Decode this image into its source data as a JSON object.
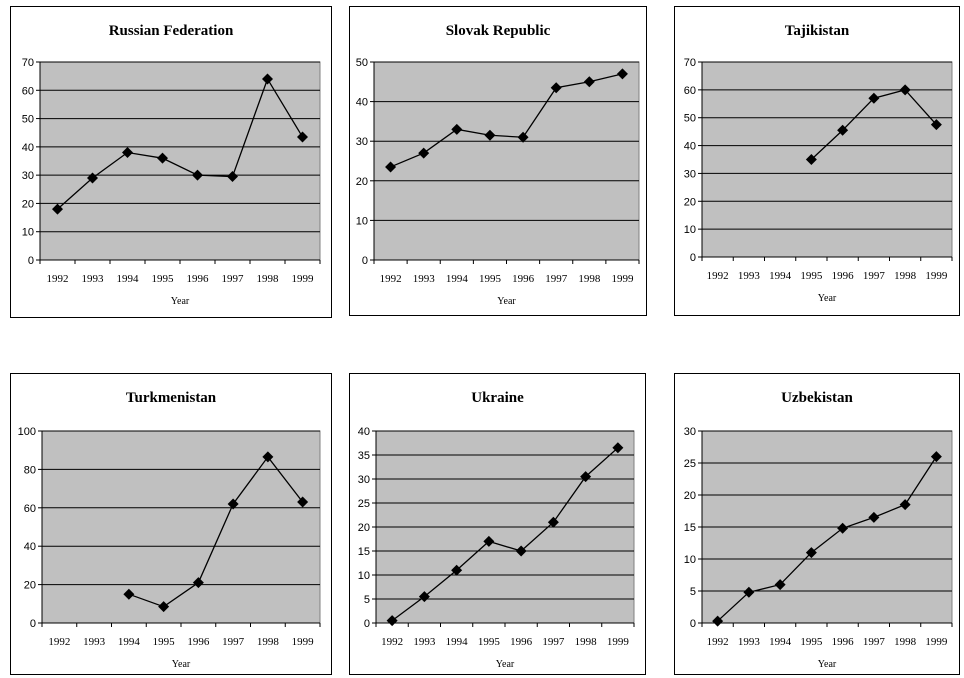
{
  "chart_data": [
    {
      "type": "line",
      "title": "Russian Federation",
      "xlabel": "Year",
      "ylabel": "",
      "x": [
        "1992",
        "1993",
        "1994",
        "1995",
        "1996",
        "1997",
        "1998",
        "1999"
      ],
      "ylim": [
        0,
        70
      ],
      "yticks": [
        0,
        10,
        20,
        30,
        40,
        50,
        60,
        70
      ],
      "values": [
        18,
        29,
        38,
        36,
        30,
        29.5,
        64,
        43.5
      ],
      "grid": true
    },
    {
      "type": "line",
      "title": "Slovak Republic",
      "xlabel": "Year",
      "ylabel": "",
      "x": [
        "1992",
        "1993",
        "1994",
        "1995",
        "1996",
        "1997",
        "1998",
        "1999"
      ],
      "ylim": [
        0,
        50
      ],
      "yticks": [
        0,
        10,
        20,
        30,
        40,
        50
      ],
      "values": [
        23.5,
        27,
        33,
        31.5,
        31,
        43.5,
        45,
        47
      ],
      "grid": true
    },
    {
      "type": "line",
      "title": "Tajikistan",
      "xlabel": "Year",
      "ylabel": "",
      "x": [
        "1992",
        "1993",
        "1994",
        "1995",
        "1996",
        "1997",
        "1998",
        "1999"
      ],
      "ylim": [
        0,
        70
      ],
      "yticks": [
        0,
        10,
        20,
        30,
        40,
        50,
        60,
        70
      ],
      "values": [
        null,
        null,
        null,
        35,
        45.5,
        57,
        60,
        47.5
      ],
      "grid": true
    },
    {
      "type": "line",
      "title": "Turkmenistan",
      "xlabel": "Year",
      "ylabel": "",
      "x": [
        "1992",
        "1993",
        "1994",
        "1995",
        "1996",
        "1997",
        "1998",
        "1999"
      ],
      "ylim": [
        0,
        100
      ],
      "yticks": [
        0,
        20,
        40,
        60,
        80,
        100
      ],
      "values": [
        null,
        null,
        15,
        8.5,
        21,
        62,
        86.5,
        63
      ],
      "grid": true
    },
    {
      "type": "line",
      "title": "Ukraine",
      "xlabel": "Year",
      "ylabel": "",
      "x": [
        "1992",
        "1993",
        "1994",
        "1995",
        "1996",
        "1997",
        "1998",
        "1999"
      ],
      "ylim": [
        0,
        40
      ],
      "yticks": [
        0,
        5,
        10,
        15,
        20,
        25,
        30,
        35,
        40
      ],
      "values": [
        0.5,
        5.5,
        11,
        17,
        15,
        21,
        30.5,
        36.5
      ],
      "grid": true
    },
    {
      "type": "line",
      "title": "Uzbekistan",
      "xlabel": "Year",
      "ylabel": "",
      "x": [
        "1992",
        "1993",
        "1994",
        "1995",
        "1996",
        "1997",
        "1998",
        "1999"
      ],
      "ylim": [
        0,
        30
      ],
      "yticks": [
        0,
        5,
        10,
        15,
        20,
        25,
        30
      ],
      "values": [
        0.3,
        4.8,
        6,
        11,
        14.8,
        16.5,
        18.5,
        26
      ],
      "grid": true
    }
  ]
}
